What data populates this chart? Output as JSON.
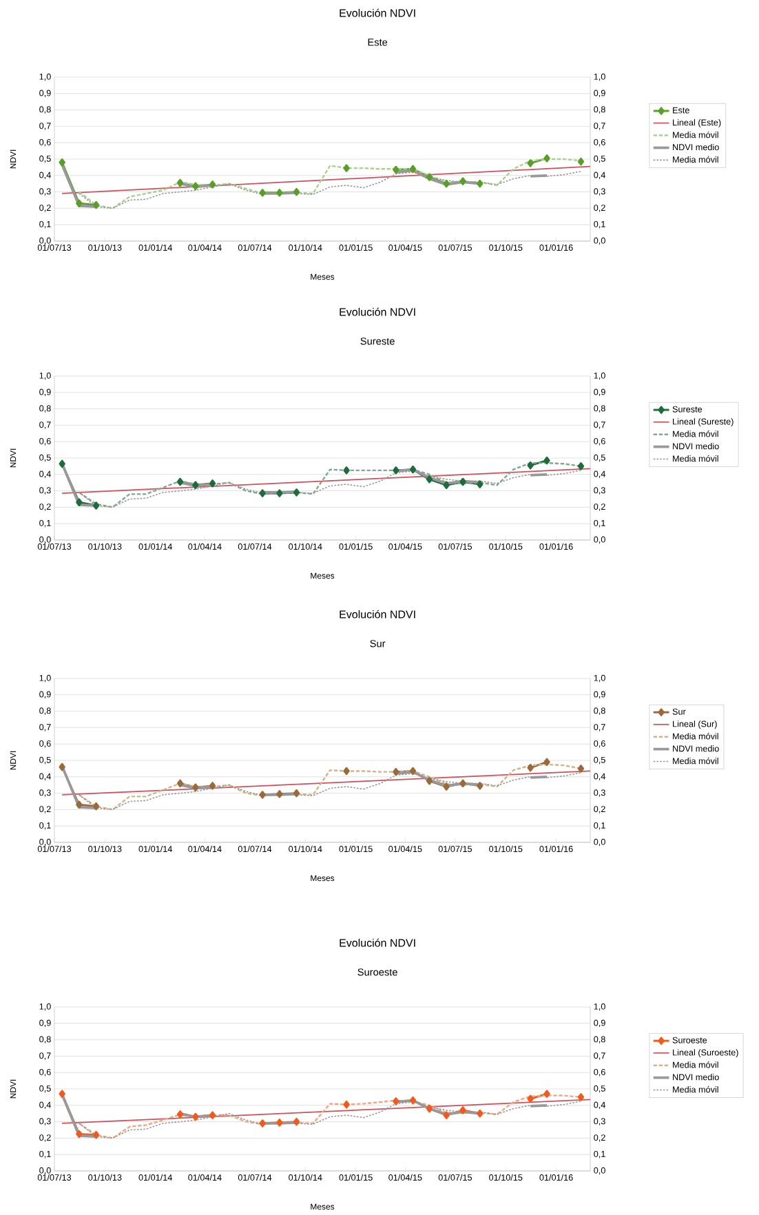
{
  "chart_data": [
    {
      "type": "line",
      "title": "Evolución NDVI",
      "subtitle": "Este",
      "xlabel": "Meses",
      "ylabel": "NDVI",
      "x": [
        "2013-07-15",
        "2013-08-15",
        "2013-09-15",
        "2013-10-15",
        "2013-11-15",
        "2013-12-15",
        "2014-01-15",
        "2014-02-15",
        "2014-03-15",
        "2014-04-15",
        "2014-05-15",
        "2014-06-15",
        "2014-07-15",
        "2014-08-15",
        "2014-09-15",
        "2014-10-15",
        "2014-11-15",
        "2014-12-15",
        "2015-01-15",
        "2015-02-15",
        "2015-03-15",
        "2015-04-15",
        "2015-05-15",
        "2015-06-15",
        "2015-07-15",
        "2015-08-15",
        "2015-09-15",
        "2015-10-15",
        "2015-11-15",
        "2015-12-15",
        "2016-01-15",
        "2016-02-15"
      ],
      "series": [
        {
          "name": "Este",
          "color": "#5a9e2a",
          "marker": "diamond",
          "line_style": "solid",
          "values": [
            0.48,
            0.23,
            0.22,
            null,
            null,
            null,
            null,
            0.355,
            0.335,
            0.345,
            null,
            null,
            0.295,
            0.295,
            0.3,
            null,
            null,
            0.445,
            null,
            null,
            0.435,
            0.44,
            0.39,
            0.35,
            0.365,
            0.35,
            null,
            null,
            0.475,
            0.505,
            null,
            0.485
          ]
        },
        {
          "name": "Lineal (Este)",
          "type": "line",
          "color": "#d0505a",
          "marker": "none",
          "line_style": "solid",
          "x": [
            "2013-07-15",
            "2016-03-03"
          ],
          "values": [
            0.29,
            0.455
          ]
        },
        {
          "name": "Media móvil",
          "color": "#a9d18e",
          "marker": "none",
          "line_style": "dashed",
          "values": [
            null,
            0.3,
            0.22,
            0.2,
            0.27,
            0.29,
            0.31,
            0.36,
            0.345,
            0.34,
            0.35,
            0.32,
            0.29,
            0.295,
            0.295,
            0.29,
            0.46,
            0.445,
            0.445,
            0.44,
            0.44,
            0.44,
            0.4,
            0.36,
            0.36,
            0.36,
            0.34,
            0.44,
            0.49,
            0.5,
            0.5,
            0.49
          ]
        },
        {
          "name": "NDVI medio",
          "color": "#999999",
          "marker": "none",
          "line_style": "solid",
          "values": [
            0.465,
            0.215,
            0.21,
            null,
            null,
            null,
            null,
            0.35,
            0.33,
            0.34,
            null,
            null,
            0.29,
            0.29,
            0.295,
            null,
            null,
            null,
            null,
            null,
            0.42,
            0.43,
            0.38,
            0.345,
            0.36,
            0.35,
            null,
            null,
            0.395,
            0.4,
            null,
            null
          ]
        },
        {
          "name": "Media móvil",
          "color": "#999999",
          "marker": "none",
          "line_style": "dotted",
          "values": [
            null,
            0.29,
            0.21,
            0.2,
            0.25,
            0.255,
            0.29,
            0.3,
            0.31,
            0.33,
            0.35,
            0.31,
            0.285,
            0.29,
            0.29,
            0.285,
            0.33,
            0.34,
            0.325,
            0.36,
            0.41,
            0.42,
            0.39,
            0.37,
            0.36,
            0.36,
            0.345,
            0.38,
            0.4,
            0.395,
            0.405,
            0.425
          ]
        }
      ],
      "xlim": [
        "2013-07-01",
        "2016-03-03"
      ],
      "xticks": [
        {
          "value": "2013-07-01",
          "label": "01/07/13"
        },
        {
          "value": "2013-10-01",
          "label": "01/10/13"
        },
        {
          "value": "2014-01-01",
          "label": "01/01/14"
        },
        {
          "value": "2014-04-01",
          "label": "01/04/14"
        },
        {
          "value": "2014-07-01",
          "label": "01/07/14"
        },
        {
          "value": "2014-10-01",
          "label": "01/10/14"
        },
        {
          "value": "2015-01-01",
          "label": "01/01/15"
        },
        {
          "value": "2015-04-01",
          "label": "01/04/15"
        },
        {
          "value": "2015-07-01",
          "label": "01/07/15"
        },
        {
          "value": "2015-10-01",
          "label": "01/10/15"
        },
        {
          "value": "2016-01-01",
          "label": "01/01/16"
        }
      ],
      "ylim": [
        0,
        1
      ],
      "yticks": [
        {
          "value": 0,
          "label": "0,0"
        },
        {
          "value": 0.1,
          "label": "0,1"
        },
        {
          "value": 0.2,
          "label": "0,2"
        },
        {
          "value": 0.3,
          "label": "0,3"
        },
        {
          "value": 0.4,
          "label": "0,4"
        },
        {
          "value": 0.5,
          "label": "0,5"
        },
        {
          "value": 0.6,
          "label": "0,6"
        },
        {
          "value": 0.7,
          "label": "0,7"
        },
        {
          "value": 0.8,
          "label": "0,8"
        },
        {
          "value": 0.9,
          "label": "0,9"
        },
        {
          "value": 1,
          "label": "1,0"
        }
      ],
      "y2lim": [
        0,
        1
      ],
      "y2ticks": [
        {
          "value": 0,
          "label": "0,0"
        },
        {
          "value": 0.1,
          "label": "0,1"
        },
        {
          "value": 0.2,
          "label": "0,2"
        },
        {
          "value": 0.3,
          "label": "0,3"
        },
        {
          "value": 0.4,
          "label": "0,4"
        },
        {
          "value": 0.5,
          "label": "0,5"
        },
        {
          "value": 0.6,
          "label": "0,6"
        },
        {
          "value": 0.7,
          "label": "0,7"
        },
        {
          "value": 0.8,
          "label": "0,8"
        },
        {
          "value": 0.9,
          "label": "0,9"
        },
        {
          "value": 1,
          "label": "1,0"
        }
      ],
      "grid": "y",
      "legend": "right"
    },
    {
      "type": "line",
      "title": "Evolución NDVI",
      "subtitle": "Sureste",
      "xlabel": "Meses",
      "ylabel": "NDVI",
      "x": [
        "2013-07-15",
        "2013-08-15",
        "2013-09-15",
        "2013-10-15",
        "2013-11-15",
        "2013-12-15",
        "2014-01-15",
        "2014-02-15",
        "2014-03-15",
        "2014-04-15",
        "2014-05-15",
        "2014-06-15",
        "2014-07-15",
        "2014-08-15",
        "2014-09-15",
        "2014-10-15",
        "2014-11-15",
        "2014-12-15",
        "2015-01-15",
        "2015-02-15",
        "2015-03-15",
        "2015-04-15",
        "2015-05-15",
        "2015-06-15",
        "2015-07-15",
        "2015-08-15",
        "2015-09-15",
        "2015-10-15",
        "2015-11-15",
        "2015-12-15",
        "2016-01-15",
        "2016-02-15"
      ],
      "series": [
        {
          "name": "Sureste",
          "color": "#1e6b3c",
          "marker": "diamond",
          "line_style": "solid",
          "values": [
            0.465,
            0.23,
            0.21,
            null,
            null,
            null,
            null,
            0.355,
            0.335,
            0.345,
            null,
            null,
            0.285,
            0.285,
            0.29,
            null,
            null,
            0.425,
            null,
            null,
            0.425,
            0.43,
            0.37,
            0.335,
            0.355,
            0.34,
            null,
            null,
            0.455,
            0.485,
            null,
            0.45
          ]
        },
        {
          "name": "Lineal (Sureste)",
          "type": "line",
          "color": "#d0505a",
          "marker": "none",
          "line_style": "solid",
          "x": [
            "2013-07-15",
            "2016-03-03"
          ],
          "values": [
            0.285,
            0.435
          ]
        },
        {
          "name": "Media móvil",
          "color": "#7fa88c",
          "marker": "none",
          "line_style": "dashed",
          "values": [
            null,
            0.29,
            0.22,
            0.2,
            0.28,
            0.28,
            0.32,
            0.36,
            0.34,
            0.34,
            0.35,
            0.3,
            0.28,
            0.285,
            0.29,
            0.28,
            0.43,
            0.425,
            0.425,
            0.425,
            0.425,
            0.43,
            0.4,
            0.35,
            0.345,
            0.35,
            0.335,
            0.43,
            0.47,
            0.47,
            0.465,
            0.45
          ]
        },
        {
          "name": "NDVI medio",
          "color": "#999999",
          "marker": "none",
          "line_style": "solid",
          "values": [
            0.465,
            0.215,
            0.21,
            null,
            null,
            null,
            null,
            0.35,
            0.33,
            0.34,
            null,
            null,
            0.29,
            0.29,
            0.295,
            null,
            null,
            null,
            null,
            null,
            0.42,
            0.43,
            0.38,
            0.345,
            0.36,
            0.35,
            null,
            null,
            0.395,
            0.4,
            null,
            null
          ]
        },
        {
          "name": "Media móvil",
          "color": "#999999",
          "marker": "none",
          "line_style": "dotted",
          "values": [
            null,
            0.29,
            0.21,
            0.2,
            0.25,
            0.255,
            0.29,
            0.3,
            0.31,
            0.33,
            0.35,
            0.31,
            0.285,
            0.29,
            0.29,
            0.285,
            0.33,
            0.34,
            0.325,
            0.36,
            0.41,
            0.42,
            0.39,
            0.37,
            0.36,
            0.36,
            0.345,
            0.38,
            0.4,
            0.395,
            0.405,
            0.425
          ]
        }
      ],
      "xlim": [
        "2013-07-01",
        "2016-03-03"
      ],
      "xticks": [
        {
          "value": "2013-07-01",
          "label": "01/07/13"
        },
        {
          "value": "2013-10-01",
          "label": "01/10/13"
        },
        {
          "value": "2014-01-01",
          "label": "01/01/14"
        },
        {
          "value": "2014-04-01",
          "label": "01/04/14"
        },
        {
          "value": "2014-07-01",
          "label": "01/07/14"
        },
        {
          "value": "2014-10-01",
          "label": "01/10/14"
        },
        {
          "value": "2015-01-01",
          "label": "01/01/15"
        },
        {
          "value": "2015-04-01",
          "label": "01/04/15"
        },
        {
          "value": "2015-07-01",
          "label": "01/07/15"
        },
        {
          "value": "2015-10-01",
          "label": "01/10/15"
        },
        {
          "value": "2016-01-01",
          "label": "01/01/16"
        }
      ],
      "ylim": [
        0,
        1
      ],
      "yticks": [
        {
          "value": 0,
          "label": "0,0"
        },
        {
          "value": 0.1,
          "label": "0,1"
        },
        {
          "value": 0.2,
          "label": "0,2"
        },
        {
          "value": 0.3,
          "label": "0,3"
        },
        {
          "value": 0.4,
          "label": "0,4"
        },
        {
          "value": 0.5,
          "label": "0,5"
        },
        {
          "value": 0.6,
          "label": "0,6"
        },
        {
          "value": 0.7,
          "label": "0,7"
        },
        {
          "value": 0.8,
          "label": "0,8"
        },
        {
          "value": 0.9,
          "label": "0,9"
        },
        {
          "value": 1,
          "label": "1,0"
        }
      ],
      "y2lim": [
        0,
        1
      ],
      "y2ticks": [
        {
          "value": 0,
          "label": "0,0"
        },
        {
          "value": 0.1,
          "label": "0,1"
        },
        {
          "value": 0.2,
          "label": "0,2"
        },
        {
          "value": 0.3,
          "label": "0,3"
        },
        {
          "value": 0.4,
          "label": "0,4"
        },
        {
          "value": 0.5,
          "label": "0,5"
        },
        {
          "value": 0.6,
          "label": "0,6"
        },
        {
          "value": 0.7,
          "label": "0,7"
        },
        {
          "value": 0.8,
          "label": "0,8"
        },
        {
          "value": 0.9,
          "label": "0,9"
        },
        {
          "value": 1,
          "label": "1,0"
        }
      ],
      "grid": "y",
      "legend": "right"
    },
    {
      "type": "line",
      "title": "Evolución NDVI",
      "subtitle": "Sur",
      "xlabel": "Meses",
      "ylabel": "NDVI",
      "x": [
        "2013-07-15",
        "2013-08-15",
        "2013-09-15",
        "2013-10-15",
        "2013-11-15",
        "2013-12-15",
        "2014-01-15",
        "2014-02-15",
        "2014-03-15",
        "2014-04-15",
        "2014-05-15",
        "2014-06-15",
        "2014-07-15",
        "2014-08-15",
        "2014-09-15",
        "2014-10-15",
        "2014-11-15",
        "2014-12-15",
        "2015-01-15",
        "2015-02-15",
        "2015-03-15",
        "2015-04-15",
        "2015-05-15",
        "2015-06-15",
        "2015-07-15",
        "2015-08-15",
        "2015-09-15",
        "2015-10-15",
        "2015-11-15",
        "2015-12-15",
        "2016-01-15",
        "2016-02-15"
      ],
      "series": [
        {
          "name": "Sur",
          "color": "#9a6a3a",
          "marker": "diamond",
          "line_style": "solid",
          "values": [
            0.46,
            0.23,
            0.22,
            null,
            null,
            null,
            null,
            0.36,
            0.335,
            0.345,
            null,
            null,
            0.29,
            0.295,
            0.3,
            null,
            null,
            0.435,
            null,
            null,
            0.43,
            0.435,
            0.375,
            0.34,
            0.36,
            0.345,
            null,
            null,
            0.455,
            0.49,
            null,
            0.45
          ]
        },
        {
          "name": "Lineal (Sur)",
          "type": "line",
          "color": "#d0505a",
          "marker": "none",
          "line_style": "solid",
          "x": [
            "2013-07-15",
            "2016-03-03"
          ],
          "values": [
            0.29,
            0.435
          ]
        },
        {
          "name": "Media móvil",
          "color": "#d2b48c",
          "marker": "none",
          "line_style": "dashed",
          "values": [
            null,
            0.29,
            0.22,
            0.2,
            0.28,
            0.28,
            0.32,
            0.36,
            0.34,
            0.34,
            0.35,
            0.3,
            0.285,
            0.29,
            0.295,
            0.29,
            0.44,
            0.435,
            0.435,
            0.43,
            0.43,
            0.435,
            0.4,
            0.355,
            0.35,
            0.355,
            0.34,
            0.44,
            0.47,
            0.475,
            0.47,
            0.45
          ]
        },
        {
          "name": "NDVI medio",
          "color": "#999999",
          "marker": "none",
          "line_style": "solid",
          "values": [
            0.465,
            0.215,
            0.21,
            null,
            null,
            null,
            null,
            0.35,
            0.33,
            0.34,
            null,
            null,
            0.29,
            0.29,
            0.295,
            null,
            null,
            null,
            null,
            null,
            0.42,
            0.43,
            0.38,
            0.345,
            0.36,
            0.35,
            null,
            null,
            0.395,
            0.4,
            null,
            null
          ]
        },
        {
          "name": "Media móvil",
          "color": "#999999",
          "marker": "none",
          "line_style": "dotted",
          "values": [
            null,
            0.29,
            0.21,
            0.2,
            0.25,
            0.255,
            0.29,
            0.3,
            0.31,
            0.33,
            0.35,
            0.31,
            0.285,
            0.29,
            0.29,
            0.285,
            0.33,
            0.34,
            0.325,
            0.36,
            0.41,
            0.42,
            0.39,
            0.37,
            0.36,
            0.36,
            0.345,
            0.38,
            0.4,
            0.395,
            0.405,
            0.425
          ]
        }
      ],
      "xlim": [
        "2013-07-01",
        "2016-03-03"
      ],
      "xticks": [
        {
          "value": "2013-07-01",
          "label": "01/07/13"
        },
        {
          "value": "2013-10-01",
          "label": "01/10/13"
        },
        {
          "value": "2014-01-01",
          "label": "01/01/14"
        },
        {
          "value": "2014-04-01",
          "label": "01/04/14"
        },
        {
          "value": "2014-07-01",
          "label": "01/07/14"
        },
        {
          "value": "2014-10-01",
          "label": "01/10/14"
        },
        {
          "value": "2015-01-01",
          "label": "01/01/15"
        },
        {
          "value": "2015-04-01",
          "label": "01/04/15"
        },
        {
          "value": "2015-07-01",
          "label": "01/07/15"
        },
        {
          "value": "2015-10-01",
          "label": "01/10/15"
        },
        {
          "value": "2016-01-01",
          "label": "01/01/16"
        }
      ],
      "ylim": [
        0,
        1
      ],
      "yticks": [
        {
          "value": 0,
          "label": "0,0"
        },
        {
          "value": 0.1,
          "label": "0,1"
        },
        {
          "value": 0.2,
          "label": "0,2"
        },
        {
          "value": 0.3,
          "label": "0,3"
        },
        {
          "value": 0.4,
          "label": "0,4"
        },
        {
          "value": 0.5,
          "label": "0,5"
        },
        {
          "value": 0.6,
          "label": "0,6"
        },
        {
          "value": 0.7,
          "label": "0,7"
        },
        {
          "value": 0.8,
          "label": "0,8"
        },
        {
          "value": 0.9,
          "label": "0,9"
        },
        {
          "value": 1,
          "label": "1,0"
        }
      ],
      "y2lim": [
        0,
        1
      ],
      "y2ticks": [
        {
          "value": 0,
          "label": "0,0"
        },
        {
          "value": 0.1,
          "label": "0,1"
        },
        {
          "value": 0.2,
          "label": "0,2"
        },
        {
          "value": 0.3,
          "label": "0,3"
        },
        {
          "value": 0.4,
          "label": "0,4"
        },
        {
          "value": 0.5,
          "label": "0,5"
        },
        {
          "value": 0.6,
          "label": "0,6"
        },
        {
          "value": 0.7,
          "label": "0,7"
        },
        {
          "value": 0.8,
          "label": "0,8"
        },
        {
          "value": 0.9,
          "label": "0,9"
        },
        {
          "value": 1,
          "label": "1,0"
        }
      ],
      "grid": "y",
      "legend": "right"
    },
    {
      "type": "line",
      "title": "Evolución NDVI",
      "subtitle": "Suroeste",
      "xlabel": "Meses",
      "ylabel": "NDVI",
      "x": [
        "2013-07-15",
        "2013-08-15",
        "2013-09-15",
        "2013-10-15",
        "2013-11-15",
        "2013-12-15",
        "2014-01-15",
        "2014-02-15",
        "2014-03-15",
        "2014-04-15",
        "2014-05-15",
        "2014-06-15",
        "2014-07-15",
        "2014-08-15",
        "2014-09-15",
        "2014-10-15",
        "2014-11-15",
        "2014-12-15",
        "2015-01-15",
        "2015-02-15",
        "2015-03-15",
        "2015-04-15",
        "2015-05-15",
        "2015-06-15",
        "2015-07-15",
        "2015-08-15",
        "2015-09-15",
        "2015-10-15",
        "2015-11-15",
        "2015-12-15",
        "2016-01-15",
        "2016-02-15"
      ],
      "series": [
        {
          "name": "Suroeste",
          "color": "#f25a1d",
          "marker": "diamond",
          "line_style": "solid",
          "values": [
            0.47,
            0.225,
            0.22,
            null,
            null,
            null,
            null,
            0.345,
            0.33,
            0.34,
            null,
            null,
            0.29,
            0.295,
            0.3,
            null,
            null,
            0.405,
            null,
            null,
            0.425,
            0.43,
            0.38,
            0.34,
            0.37,
            0.35,
            null,
            null,
            0.44,
            0.47,
            null,
            0.45
          ]
        },
        {
          "name": "Lineal (Suroeste)",
          "type": "line",
          "color": "#d0505a",
          "marker": "none",
          "line_style": "solid",
          "x": [
            "2013-07-15",
            "2016-03-03"
          ],
          "values": [
            0.29,
            0.435
          ]
        },
        {
          "name": "Media móvil",
          "color": "#f4a582",
          "marker": "none",
          "line_style": "dashed",
          "values": [
            null,
            0.29,
            0.22,
            0.2,
            0.27,
            0.28,
            0.31,
            0.345,
            0.33,
            0.34,
            0.34,
            0.3,
            0.285,
            0.295,
            0.295,
            0.29,
            0.41,
            0.405,
            0.41,
            0.42,
            0.43,
            0.425,
            0.4,
            0.355,
            0.355,
            0.355,
            0.345,
            0.42,
            0.455,
            0.46,
            0.46,
            0.45
          ]
        },
        {
          "name": "NDVI medio",
          "color": "#999999",
          "marker": "none",
          "line_style": "solid",
          "values": [
            0.465,
            0.215,
            0.21,
            null,
            null,
            null,
            null,
            0.35,
            0.33,
            0.34,
            null,
            null,
            0.29,
            0.29,
            0.295,
            null,
            null,
            null,
            null,
            null,
            0.42,
            0.43,
            0.38,
            0.345,
            0.36,
            0.35,
            null,
            null,
            0.395,
            0.4,
            null,
            null
          ]
        },
        {
          "name": "Media móvil",
          "color": "#999999",
          "marker": "none",
          "line_style": "dotted",
          "values": [
            null,
            0.29,
            0.21,
            0.2,
            0.25,
            0.255,
            0.29,
            0.3,
            0.31,
            0.33,
            0.35,
            0.31,
            0.285,
            0.29,
            0.29,
            0.285,
            0.33,
            0.34,
            0.325,
            0.36,
            0.41,
            0.42,
            0.39,
            0.37,
            0.36,
            0.36,
            0.345,
            0.38,
            0.4,
            0.395,
            0.405,
            0.425
          ]
        }
      ],
      "xlim": [
        "2013-07-01",
        "2016-03-03"
      ],
      "xticks": [
        {
          "value": "2013-07-01",
          "label": "01/07/13"
        },
        {
          "value": "2013-10-01",
          "label": "01/10/13"
        },
        {
          "value": "2014-01-01",
          "label": "01/01/14"
        },
        {
          "value": "2014-04-01",
          "label": "01/04/14"
        },
        {
          "value": "2014-07-01",
          "label": "01/07/14"
        },
        {
          "value": "2014-10-01",
          "label": "01/10/14"
        },
        {
          "value": "2015-01-01",
          "label": "01/01/15"
        },
        {
          "value": "2015-04-01",
          "label": "01/04/15"
        },
        {
          "value": "2015-07-01",
          "label": "01/07/15"
        },
        {
          "value": "2015-10-01",
          "label": "01/10/15"
        },
        {
          "value": "2016-01-01",
          "label": "01/01/16"
        }
      ],
      "ylim": [
        0,
        1
      ],
      "yticks": [
        {
          "value": 0,
          "label": "0,0"
        },
        {
          "value": 0.1,
          "label": "0,1"
        },
        {
          "value": 0.2,
          "label": "0,2"
        },
        {
          "value": 0.3,
          "label": "0,3"
        },
        {
          "value": 0.4,
          "label": "0,4"
        },
        {
          "value": 0.5,
          "label": "0,5"
        },
        {
          "value": 0.6,
          "label": "0,6"
        },
        {
          "value": 0.7,
          "label": "0,7"
        },
        {
          "value": 0.8,
          "label": "0,8"
        },
        {
          "value": 0.9,
          "label": "0,9"
        },
        {
          "value": 1,
          "label": "1,0"
        }
      ],
      "y2lim": [
        0,
        1
      ],
      "y2ticks": [
        {
          "value": 0,
          "label": "0,0"
        },
        {
          "value": 0.1,
          "label": "0,1"
        },
        {
          "value": 0.2,
          "label": "0,2"
        },
        {
          "value": 0.3,
          "label": "0,3"
        },
        {
          "value": 0.4,
          "label": "0,4"
        },
        {
          "value": 0.5,
          "label": "0,5"
        },
        {
          "value": 0.6,
          "label": "0,6"
        },
        {
          "value": 0.7,
          "label": "0,7"
        },
        {
          "value": 0.8,
          "label": "0,8"
        },
        {
          "value": 0.9,
          "label": "0,9"
        },
        {
          "value": 1,
          "label": "1,0"
        }
      ],
      "grid": "y",
      "legend": "right"
    }
  ]
}
